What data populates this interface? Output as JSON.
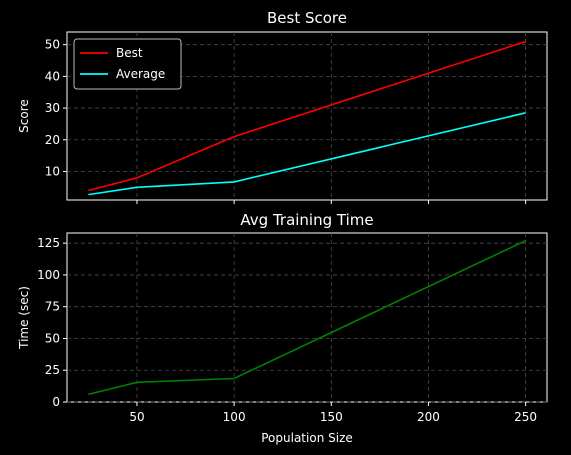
{
  "chart_data": [
    {
      "type": "line",
      "title": "Best Score",
      "xlabel": "",
      "ylabel": "Score",
      "x": [
        25,
        50,
        100,
        250
      ],
      "xlim": [
        14,
        261
      ],
      "ylim": [
        1,
        54
      ],
      "yticks": [
        10,
        20,
        30,
        40,
        50
      ],
      "xticks": [
        50,
        100,
        150,
        200,
        250
      ],
      "show_xtick_labels": false,
      "grid": true,
      "legend": "top-left",
      "series": [
        {
          "name": "Best",
          "color": "#ff0000",
          "values": [
            4,
            8,
            21,
            51
          ]
        },
        {
          "name": "Average",
          "color": "#00ffff",
          "values": [
            2.7,
            5,
            6.7,
            28.5
          ]
        }
      ]
    },
    {
      "type": "line",
      "title": "Avg Training Time",
      "xlabel": "Population Size",
      "ylabel": "Time (sec)",
      "x": [
        25,
        50,
        100,
        250
      ],
      "xlim": [
        14,
        261
      ],
      "ylim": [
        0,
        133
      ],
      "yticks": [
        0,
        25,
        50,
        75,
        100,
        125
      ],
      "xticks": [
        50,
        100,
        150,
        200,
        250
      ],
      "show_xtick_labels": true,
      "grid": true,
      "legend": "none",
      "series": [
        {
          "color": "#008000",
          "values": [
            6,
            15.5,
            18.5,
            127
          ]
        }
      ]
    }
  ]
}
